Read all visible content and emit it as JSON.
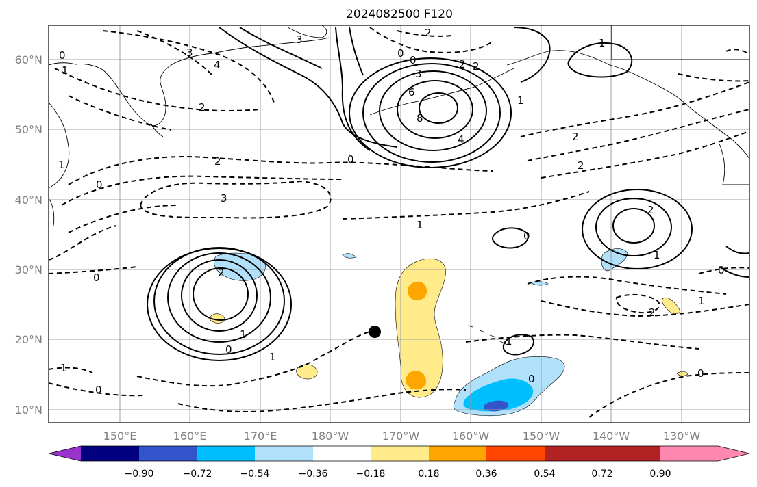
{
  "title": "2024082500 F120",
  "lat_labels": [
    "60°N",
    "50°N",
    "40°N",
    "30°N",
    "20°N",
    "10°N"
  ],
  "lon_labels": [
    "150°E",
    "160°E",
    "170°E",
    "180°W",
    "170°W",
    "160°W",
    "150°W",
    "140°W",
    "130°W"
  ],
  "contour_labels": {
    "c1": "0",
    "c2": "1",
    "c3": "2",
    "c4": "3",
    "c5": "4",
    "c6": "2",
    "c7": "3",
    "c8": "0",
    "c9": "1",
    "c10": "3",
    "c11": "6",
    "c12": "8",
    "c13": "4",
    "c14": "1",
    "c15": "1",
    "c16": "2",
    "c17": "0",
    "c18": "2",
    "c19": "2",
    "c20": "0",
    "c21": "2",
    "c22": "3",
    "c23": "1",
    "c24": "0",
    "c25": "2",
    "c26": "2",
    "c27": "1",
    "c28": "0",
    "c29": "0",
    "c30": "2",
    "c31": "1",
    "c32": "0",
    "c33": "1",
    "c34": "1",
    "c35": "0",
    "c36": "0",
    "c37": "0",
    "c38": "1",
    "c39": "2",
    "c40": "0",
    "c41": "1"
  },
  "colorbar": {
    "ticks": [
      "−0.90",
      "−0.72",
      "−0.54",
      "−0.36",
      "−0.18",
      "0.18",
      "0.36",
      "0.54",
      "0.72",
      "0.90"
    ],
    "colors": [
      "#9933cc",
      "#000080",
      "#3355cc",
      "#00bfff",
      "#b0e0fa",
      "#ffffff",
      "#ffeb8a",
      "#ffa500",
      "#ff4500",
      "#b22222",
      "#ff88b0"
    ]
  },
  "marker": {
    "label": "storm-center"
  }
}
